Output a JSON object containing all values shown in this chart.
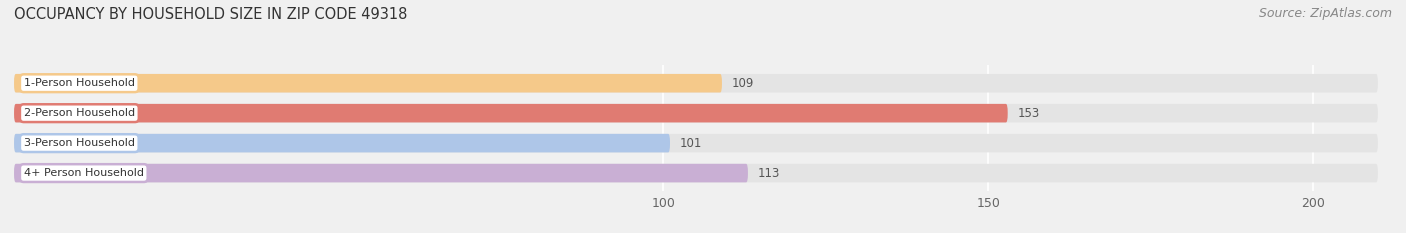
{
  "title": "OCCUPANCY BY HOUSEHOLD SIZE IN ZIP CODE 49318",
  "source": "Source: ZipAtlas.com",
  "categories": [
    "1-Person Household",
    "2-Person Household",
    "3-Person Household",
    "4+ Person Household"
  ],
  "values": [
    109,
    153,
    101,
    113
  ],
  "bar_colors": [
    "#f5c98a",
    "#e07b72",
    "#aec6e8",
    "#c9afd4"
  ],
  "xlim": [
    0,
    210
  ],
  "xticks": [
    100,
    150,
    200
  ],
  "background_color": "#f0f0f0",
  "bar_bg_color": "#e4e4e4",
  "title_fontsize": 10.5,
  "source_fontsize": 9,
  "bar_height": 0.62,
  "figsize": [
    14.06,
    2.33
  ],
  "dpi": 100
}
